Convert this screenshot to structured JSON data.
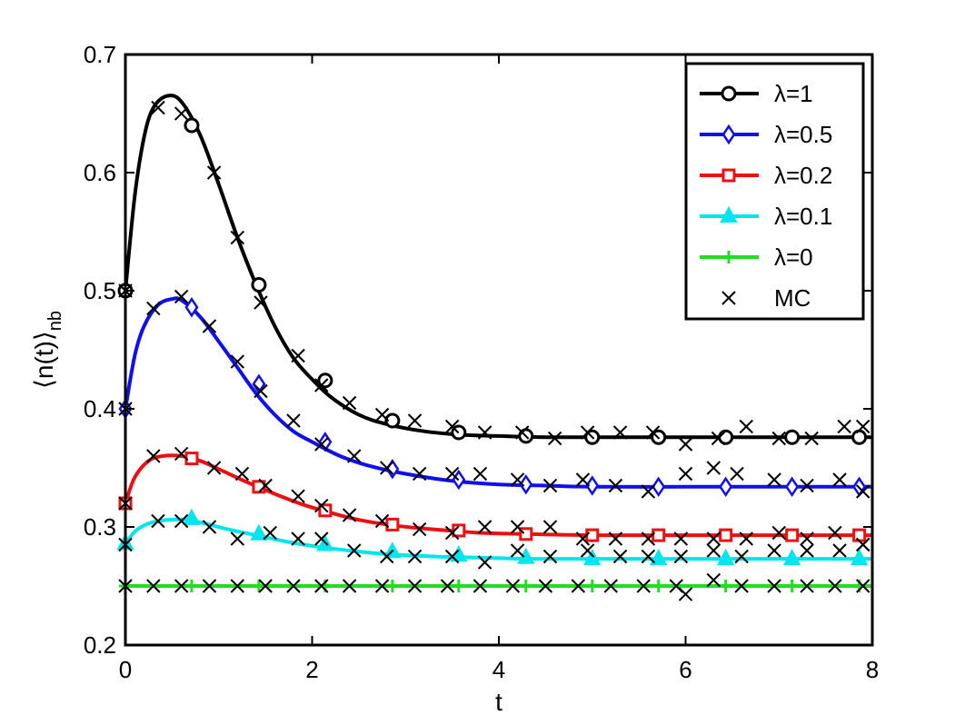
{
  "chart_data": {
    "type": "line",
    "xlabel": "t",
    "ylabel_main": "⟨n(t)⟩",
    "ylabel_sub": "nb",
    "xlim": [
      0,
      8
    ],
    "ylim": [
      0.2,
      0.7
    ],
    "xticks": [
      0,
      2,
      4,
      6,
      8
    ],
    "xtick_labels": [
      "0",
      "2",
      "4",
      "6",
      "8"
    ],
    "yticks": [
      0.2,
      0.3,
      0.4,
      0.5,
      0.6,
      0.7
    ],
    "ytick_labels": [
      "0.2",
      "0.3",
      "0.4",
      "0.5",
      "0.6",
      "0.7"
    ],
    "grid": false,
    "legend_position": "top-right",
    "series": [
      {
        "name": "λ=1",
        "color": "#000000",
        "marker": "circle",
        "x": [
          0,
          0.1,
          0.2,
          0.3,
          0.45,
          0.6,
          0.8,
          1.0,
          1.2,
          1.4,
          1.6,
          1.8,
          2.0,
          2.2,
          2.5,
          2.8,
          3.2,
          3.6,
          4.0,
          4.5,
          5.0,
          6.0,
          7.0,
          8.0
        ],
        "y": [
          0.5,
          0.58,
          0.63,
          0.655,
          0.665,
          0.66,
          0.632,
          0.59,
          0.545,
          0.505,
          0.47,
          0.443,
          0.425,
          0.41,
          0.395,
          0.387,
          0.381,
          0.378,
          0.377,
          0.376,
          0.376,
          0.376,
          0.376,
          0.376
        ],
        "marker_x": [
          0,
          0.71,
          1.43,
          2.14,
          2.86,
          3.57,
          4.29,
          5.0,
          5.71,
          6.43,
          7.14,
          7.86
        ],
        "marker_y": [
          0.5,
          0.64,
          0.505,
          0.424,
          0.39,
          0.38,
          0.377,
          0.376,
          0.376,
          0.376,
          0.376,
          0.376
        ]
      },
      {
        "name": "λ=0.5",
        "color": "#1010ee",
        "marker": "diamond",
        "x": [
          0,
          0.1,
          0.2,
          0.35,
          0.5,
          0.6,
          0.8,
          1.0,
          1.2,
          1.4,
          1.6,
          1.8,
          2.0,
          2.3,
          2.6,
          3.0,
          3.5,
          4.0,
          4.5,
          5.0,
          6.0,
          7.0,
          8.0
        ],
        "y": [
          0.4,
          0.445,
          0.47,
          0.488,
          0.493,
          0.492,
          0.478,
          0.457,
          0.435,
          0.413,
          0.395,
          0.381,
          0.372,
          0.36,
          0.352,
          0.345,
          0.339,
          0.336,
          0.335,
          0.334,
          0.334,
          0.334,
          0.334
        ],
        "marker_x": [
          0,
          0.71,
          1.43,
          2.14,
          2.86,
          3.57,
          4.29,
          5.0,
          5.71,
          6.43,
          7.14,
          7.86
        ],
        "marker_y": [
          0.4,
          0.486,
          0.421,
          0.372,
          0.349,
          0.34,
          0.336,
          0.335,
          0.334,
          0.334,
          0.334,
          0.334
        ]
      },
      {
        "name": "λ=0.2",
        "color": "#ee1010",
        "marker": "square",
        "x": [
          0,
          0.1,
          0.25,
          0.4,
          0.6,
          0.8,
          1.0,
          1.3,
          1.6,
          1.9,
          2.2,
          2.5,
          2.9,
          3.3,
          3.8,
          4.3,
          5.0,
          6.0,
          7.0,
          8.0
        ],
        "y": [
          0.32,
          0.342,
          0.356,
          0.36,
          0.36,
          0.356,
          0.349,
          0.338,
          0.328,
          0.319,
          0.312,
          0.306,
          0.301,
          0.298,
          0.295,
          0.294,
          0.293,
          0.293,
          0.293,
          0.293
        ],
        "marker_x": [
          0,
          0.71,
          1.43,
          2.14,
          2.86,
          3.57,
          4.29,
          5.0,
          5.71,
          6.43,
          7.14,
          7.86
        ],
        "marker_y": [
          0.32,
          0.358,
          0.334,
          0.314,
          0.302,
          0.297,
          0.294,
          0.293,
          0.293,
          0.293,
          0.293,
          0.293
        ]
      },
      {
        "name": "λ=0.1",
        "color": "#00e5ee",
        "marker": "triangle",
        "x": [
          0,
          0.1,
          0.25,
          0.45,
          0.65,
          0.85,
          1.1,
          1.4,
          1.7,
          2.0,
          2.4,
          2.8,
          3.3,
          3.8,
          4.3,
          5.0,
          6.0,
          7.0,
          8.0
        ],
        "y": [
          0.285,
          0.296,
          0.303,
          0.306,
          0.306,
          0.303,
          0.298,
          0.293,
          0.288,
          0.284,
          0.28,
          0.277,
          0.275,
          0.274,
          0.273,
          0.273,
          0.273,
          0.273,
          0.273
        ],
        "marker_x": [
          0,
          0.71,
          1.43,
          2.14,
          2.86,
          3.57,
          4.29,
          5.0,
          5.71,
          6.43,
          7.14,
          7.86
        ],
        "marker_y": [
          0.286,
          0.307,
          0.294,
          0.285,
          0.279,
          0.276,
          0.274,
          0.273,
          0.273,
          0.273,
          0.273,
          0.273
        ]
      },
      {
        "name": "λ=0",
        "color": "#22dd22",
        "marker": "plus",
        "x": [
          0,
          8
        ],
        "y": [
          0.25,
          0.25
        ],
        "marker_x": [
          0,
          0.71,
          1.43,
          2.14,
          2.86,
          3.57,
          4.29,
          5.0,
          5.71,
          6.43,
          7.14,
          7.86
        ],
        "marker_y": [
          0.25,
          0.25,
          0.25,
          0.25,
          0.25,
          0.25,
          0.25,
          0.25,
          0.25,
          0.25,
          0.25,
          0.25
        ]
      },
      {
        "name": "MC",
        "color": "#000000",
        "marker": "x",
        "line": false,
        "x": [
          0,
          0.35,
          0.6,
          0.95,
          1.2,
          1.45,
          1.85,
          2.1,
          2.4,
          2.75,
          3.1,
          3.5,
          3.85,
          4.25,
          4.6,
          4.95,
          5.3,
          5.65,
          6.0,
          6.35,
          6.65,
          7.0,
          7.35,
          7.7,
          7.9,
          0,
          0.3,
          0.6,
          0.9,
          1.2,
          1.45,
          1.8,
          2.1,
          2.45,
          2.8,
          3.15,
          3.5,
          3.8,
          4.2,
          4.55,
          4.9,
          5.25,
          5.6,
          6.0,
          6.3,
          6.55,
          6.95,
          7.3,
          7.65,
          7.9,
          0,
          0.3,
          0.6,
          0.95,
          1.25,
          1.5,
          1.85,
          2.1,
          2.4,
          2.75,
          3.15,
          3.5,
          3.85,
          4.2,
          4.55,
          4.9,
          5.25,
          5.6,
          5.95,
          6.3,
          6.65,
          7.0,
          7.3,
          7.6,
          7.9,
          0,
          0.35,
          0.6,
          0.9,
          1.2,
          1.55,
          1.85,
          2.1,
          2.45,
          2.8,
          3.1,
          3.5,
          3.85,
          4.2,
          4.55,
          4.95,
          5.3,
          5.6,
          5.95,
          6.3,
          6.6,
          6.95,
          7.3,
          7.65,
          7.9,
          0,
          0.3,
          0.6,
          0.9,
          1.2,
          1.5,
          1.8,
          2.1,
          2.4,
          2.75,
          3.1,
          3.45,
          3.8,
          4.15,
          4.5,
          4.85,
          5.2,
          5.55,
          5.9,
          6.0,
          6.3,
          6.6,
          6.95,
          7.3,
          7.6,
          7.9
        ],
        "y": [
          0.5,
          0.655,
          0.65,
          0.6,
          0.545,
          0.49,
          0.445,
          0.42,
          0.405,
          0.395,
          0.39,
          0.385,
          0.38,
          0.38,
          0.375,
          0.38,
          0.38,
          0.38,
          0.37,
          0.375,
          0.385,
          0.375,
          0.375,
          0.385,
          0.385,
          0.4,
          0.485,
          0.495,
          0.47,
          0.44,
          0.415,
          0.39,
          0.37,
          0.36,
          0.35,
          0.345,
          0.345,
          0.345,
          0.34,
          0.335,
          0.34,
          0.335,
          0.33,
          0.345,
          0.35,
          0.345,
          0.34,
          0.335,
          0.34,
          0.33,
          0.32,
          0.36,
          0.362,
          0.35,
          0.345,
          0.335,
          0.326,
          0.318,
          0.31,
          0.305,
          0.298,
          0.295,
          0.3,
          0.3,
          0.3,
          0.29,
          0.29,
          0.29,
          0.29,
          0.29,
          0.29,
          0.295,
          0.29,
          0.295,
          0.285,
          0.285,
          0.305,
          0.305,
          0.3,
          0.29,
          0.295,
          0.29,
          0.29,
          0.28,
          0.275,
          0.275,
          0.275,
          0.27,
          0.28,
          0.275,
          0.28,
          0.275,
          0.275,
          0.275,
          0.28,
          0.275,
          0.28,
          0.28,
          0.28,
          0.285,
          0.25,
          0.25,
          0.25,
          0.25,
          0.25,
          0.25,
          0.25,
          0.25,
          0.25,
          0.25,
          0.25,
          0.25,
          0.25,
          0.25,
          0.25,
          0.25,
          0.25,
          0.25,
          0.25,
          0.243,
          0.255,
          0.25,
          0.25,
          0.25,
          0.25,
          0.25
        ]
      }
    ]
  }
}
